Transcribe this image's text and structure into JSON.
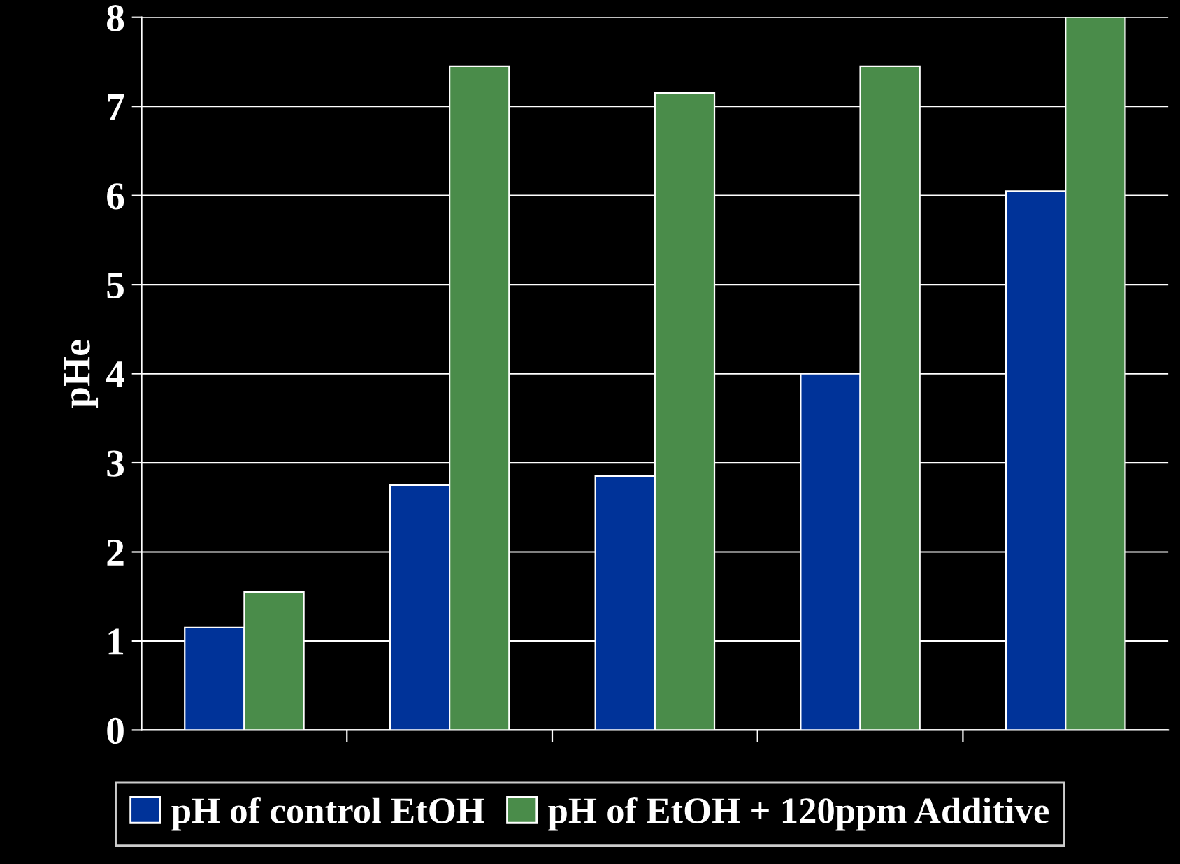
{
  "chart_data": {
    "type": "bar",
    "ylabel": "pHe",
    "categories": [
      null,
      null,
      null,
      null,
      null
    ],
    "series": [
      {
        "name": "pH of control EtOH",
        "color": "#003399",
        "values": [
          1.15,
          2.75,
          2.85,
          4.0,
          6.05
        ]
      },
      {
        "name": "pH of EtOH + 120ppm Additive",
        "color": "#4a8c4a",
        "values": [
          1.55,
          7.45,
          7.15,
          7.45,
          8.0
        ]
      }
    ],
    "ylim": [
      0,
      8
    ],
    "yticks": [
      0,
      1,
      2,
      3,
      4,
      5,
      6,
      7,
      8
    ],
    "grid": "y",
    "legend": "bottom"
  }
}
